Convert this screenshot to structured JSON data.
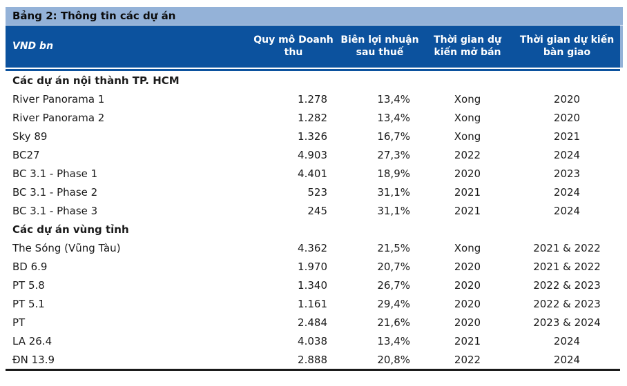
{
  "colors": {
    "title_bar_bg": "#94B2D8",
    "header_bg": "#0C529E",
    "bottom_rule": "#1a1a1a",
    "body_text": "#1a1a1a",
    "header_text": "#ffffff"
  },
  "title": "Bảng 2: Thông tin các dự án",
  "table": {
    "header": {
      "unit": "VND bn",
      "revenue": "Quy mô Doanh thu",
      "margin": "Biên lợi nhuận sau thuế",
      "open": "Thời gian dự kiến mở bán",
      "handover": "Thời gian dự kiến bàn giao"
    },
    "rows": [
      {
        "type": "section",
        "label": "Các dự án nội thành TP. HCM",
        "revenue": "",
        "margin": "",
        "open": "",
        "handover": ""
      },
      {
        "type": "data",
        "label": "River Panorama 1",
        "revenue": "1.278",
        "margin": "13,4%",
        "open": "Xong",
        "handover": "2020"
      },
      {
        "type": "data",
        "label": "River Panorama 2",
        "revenue": "1.282",
        "margin": "13,4%",
        "open": "Xong",
        "handover": "2020"
      },
      {
        "type": "data",
        "label": "Sky 89",
        "revenue": "1.326",
        "margin": "16,7%",
        "open": "Xong",
        "handover": "2021"
      },
      {
        "type": "data",
        "label": "BC27",
        "revenue": "4.903",
        "margin": "27,3%",
        "open": "2022",
        "handover": "2024"
      },
      {
        "type": "data",
        "label": "BC 3.1 - Phase 1",
        "revenue": "4.401",
        "margin": "18,9%",
        "open": "2020",
        "handover": "2023"
      },
      {
        "type": "data",
        "label": "BC 3.1 - Phase 2",
        "revenue": "523",
        "margin": "31,1%",
        "open": "2021",
        "handover": "2024"
      },
      {
        "type": "data",
        "label": "BC 3.1 - Phase 3",
        "revenue": "245",
        "margin": "31,1%",
        "open": "2021",
        "handover": "2024"
      },
      {
        "type": "section",
        "label": "Các dự án vùng tỉnh",
        "revenue": "",
        "margin": "",
        "open": "",
        "handover": ""
      },
      {
        "type": "data",
        "label": "The Sóng (Vũng Tàu)",
        "revenue": "4.362",
        "margin": "21,5%",
        "open": "Xong",
        "handover": "2021 & 2022"
      },
      {
        "type": "data",
        "label": "BD 6.9",
        "revenue": "1.970",
        "margin": "20,7%",
        "open": "2020",
        "handover": "2021 & 2022"
      },
      {
        "type": "data",
        "label": "PT 5.8",
        "revenue": "1.340",
        "margin": "26,7%",
        "open": "2020",
        "handover": "2022 & 2023"
      },
      {
        "type": "data",
        "label": "PT 5.1",
        "revenue": "1.161",
        "margin": "29,4%",
        "open": "2020",
        "handover": "2022 & 2023"
      },
      {
        "type": "data",
        "label": "PT",
        "revenue": "2.484",
        "margin": "21,6%",
        "open": "2020",
        "handover": "2023 & 2024"
      },
      {
        "type": "data",
        "label": "LA 26.4",
        "revenue": "4.038",
        "margin": "13,4%",
        "open": "2021",
        "handover": "2024"
      },
      {
        "type": "data",
        "label": "ĐN 13.9",
        "revenue": "2.888",
        "margin": "20,8%",
        "open": "2022",
        "handover": "2024"
      }
    ]
  }
}
